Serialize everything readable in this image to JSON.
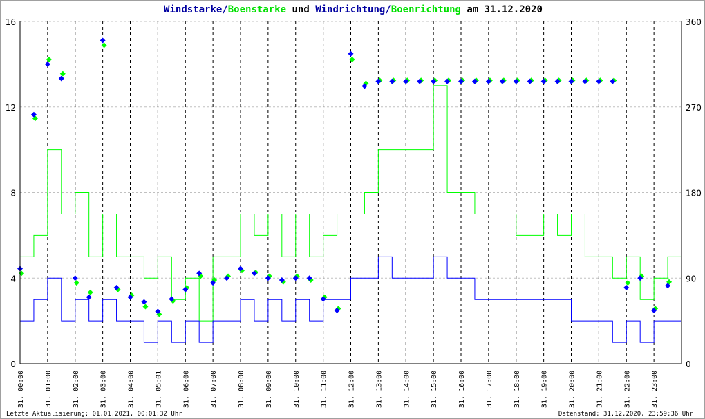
{
  "title": {
    "part1": "Windstarke/",
    "part2": "Boenstarke",
    "part3": " und ",
    "part4": "Windrichtung/",
    "part5": "Boenrichtung",
    "part6": " am 31.12.2020"
  },
  "footer": {
    "left": "Letzte Aktualisierung: 01.01.2021, 00:01:32 Uhr",
    "right": "Datenstand: 31.12.2020, 23:59:36 Uhr"
  },
  "colors": {
    "speed": "#0000ff",
    "gust": "#00ff00",
    "title_blue": "#0000a0",
    "grid_h": "#c0c0c0",
    "grid_v": "#000000"
  },
  "chart_data": {
    "type": "line",
    "grid": true,
    "y_left": {
      "range": [
        0,
        16
      ],
      "ticks": [
        "0",
        "4",
        "8",
        "12",
        "16"
      ]
    },
    "y_right": {
      "range": [
        0,
        360
      ],
      "ticks": [
        "0",
        "90",
        "180",
        "270",
        "360"
      ]
    },
    "x_ticks": [
      "31. 00:00",
      "31. 01:00",
      "31. 02:00",
      "31. 03:00",
      "31. 04:00",
      "31. 05:01",
      "31. 06:00",
      "31. 07:00",
      "31. 08:00",
      "31. 09:00",
      "31. 10:00",
      "31. 11:00",
      "31. 12:00",
      "31. 13:00",
      "31. 14:00",
      "31. 15:00",
      "31. 16:00",
      "31. 17:00",
      "31. 18:00",
      "31. 19:00",
      "31. 20:00",
      "31. 21:00",
      "31. 22:00",
      "31. 23:00"
    ],
    "x_hours": [
      0,
      0.5,
      1,
      1.5,
      2,
      2.5,
      3,
      3.5,
      4,
      4.5,
      5,
      5.5,
      6,
      6.5,
      7,
      7.5,
      8,
      8.5,
      9,
      9.5,
      10,
      10.5,
      11,
      11.5,
      12,
      12.5,
      13,
      13.5,
      14,
      14.5,
      15,
      15.5,
      16,
      16.5,
      17,
      17.5,
      18,
      18.5,
      19,
      19.5,
      20,
      20.5,
      21,
      21.5,
      22,
      22.5,
      23,
      23.5
    ],
    "series": [
      {
        "name": "Windstarke",
        "axis": "left",
        "values": [
          2,
          3,
          4,
          2,
          3,
          2,
          3,
          2,
          2,
          1,
          2,
          1,
          2,
          1,
          2,
          2,
          3,
          2,
          3,
          2,
          3,
          2,
          3,
          3,
          4,
          4,
          5,
          4,
          4,
          4,
          5,
          4,
          4,
          3,
          3,
          3,
          3,
          3,
          3,
          3,
          2,
          2,
          2,
          1,
          2,
          1,
          2,
          2
        ]
      },
      {
        "name": "Boenstarke",
        "axis": "left",
        "values": [
          5,
          6,
          10,
          7,
          8,
          5,
          7,
          5,
          5,
          4,
          5,
          3,
          4,
          2,
          5,
          5,
          7,
          6,
          7,
          5,
          7,
          5,
          6,
          7,
          7,
          8,
          10,
          10,
          10,
          10,
          13,
          8,
          8,
          7,
          7,
          7,
          6,
          6,
          7,
          6,
          7,
          5,
          5,
          4,
          5,
          3,
          4,
          5
        ]
      },
      {
        "name": "Windrichtung",
        "axis": "right",
        "values": [
          100,
          262,
          315,
          300,
          90,
          70,
          340,
          80,
          70,
          65,
          55,
          68,
          78,
          95,
          85,
          90,
          100,
          95,
          90,
          88,
          90,
          90,
          68,
          56,
          326,
          292,
          297,
          297,
          297,
          297,
          297,
          297,
          297,
          297,
          297,
          297,
          297,
          297,
          297,
          297,
          297,
          297,
          297,
          297,
          80,
          90,
          56,
          82
        ]
      },
      {
        "name": "Boenrichtung",
        "axis": "right",
        "values": [
          95,
          258,
          320,
          305,
          85,
          75,
          335,
          78,
          72,
          60,
          52,
          66,
          80,
          92,
          88,
          92,
          98,
          96,
          92,
          86,
          92,
          88,
          70,
          58,
          320,
          295,
          298,
          298,
          298,
          298,
          298,
          298,
          298,
          298,
          298,
          298,
          298,
          298,
          298,
          298,
          298,
          298,
          298,
          298,
          85,
          92,
          58,
          86
        ]
      }
    ]
  }
}
